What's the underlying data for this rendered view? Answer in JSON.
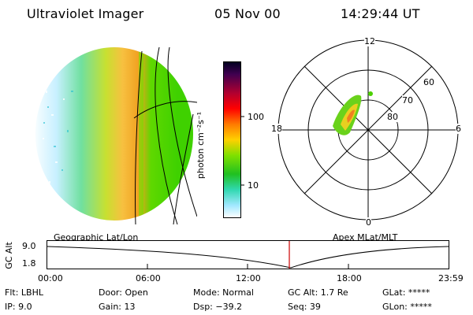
{
  "header": {
    "instrument": "Ultraviolet Imager",
    "date": "05 Nov 00",
    "time": "14:29:44 UT"
  },
  "left_panel": {
    "label": "Geographic Lat/Lon",
    "colors": {
      "low": "#8ff0c8",
      "mid": "#3fd100",
      "high": "#f0a020"
    }
  },
  "colorbar": {
    "unit_label": "photon cm⁻²s⁻¹",
    "ticks": [
      "100",
      "10"
    ],
    "colors": [
      "#000020",
      "#400050",
      "#b00030",
      "#ff0000",
      "#ff7a00",
      "#ffd000",
      "#80e000",
      "#20c020",
      "#30d8b0",
      "#a0e8ff",
      "#ffffff"
    ]
  },
  "polar": {
    "label": "Apex MLat/MLT",
    "mlt_labels": {
      "top": "12",
      "left": "18",
      "right": "6",
      "bottom": "0"
    },
    "lat_labels": [
      "60",
      "70",
      "80"
    ]
  },
  "timeline": {
    "y_label": "GC Alt",
    "y_ticks": [
      "9.0",
      "1.8"
    ],
    "x_ticks": [
      "00:00",
      "06:00",
      "12:00",
      "18:00",
      "23:59"
    ],
    "current_marker_color": "#cc0000"
  },
  "info": {
    "row1": {
      "filter": "Flt: LBHL",
      "door": "Door: Open",
      "mode": "Mode: Normal",
      "gc_alt": "GC Alt: 1.7 Re",
      "glat": "GLat: *****"
    },
    "row2": {
      "ip": "IP:  9.0",
      "gain": "Gain: 13",
      "dsp": "Dsp:  −39.2",
      "seq": "Seq: 39",
      "glon": "GLon: *****"
    }
  }
}
